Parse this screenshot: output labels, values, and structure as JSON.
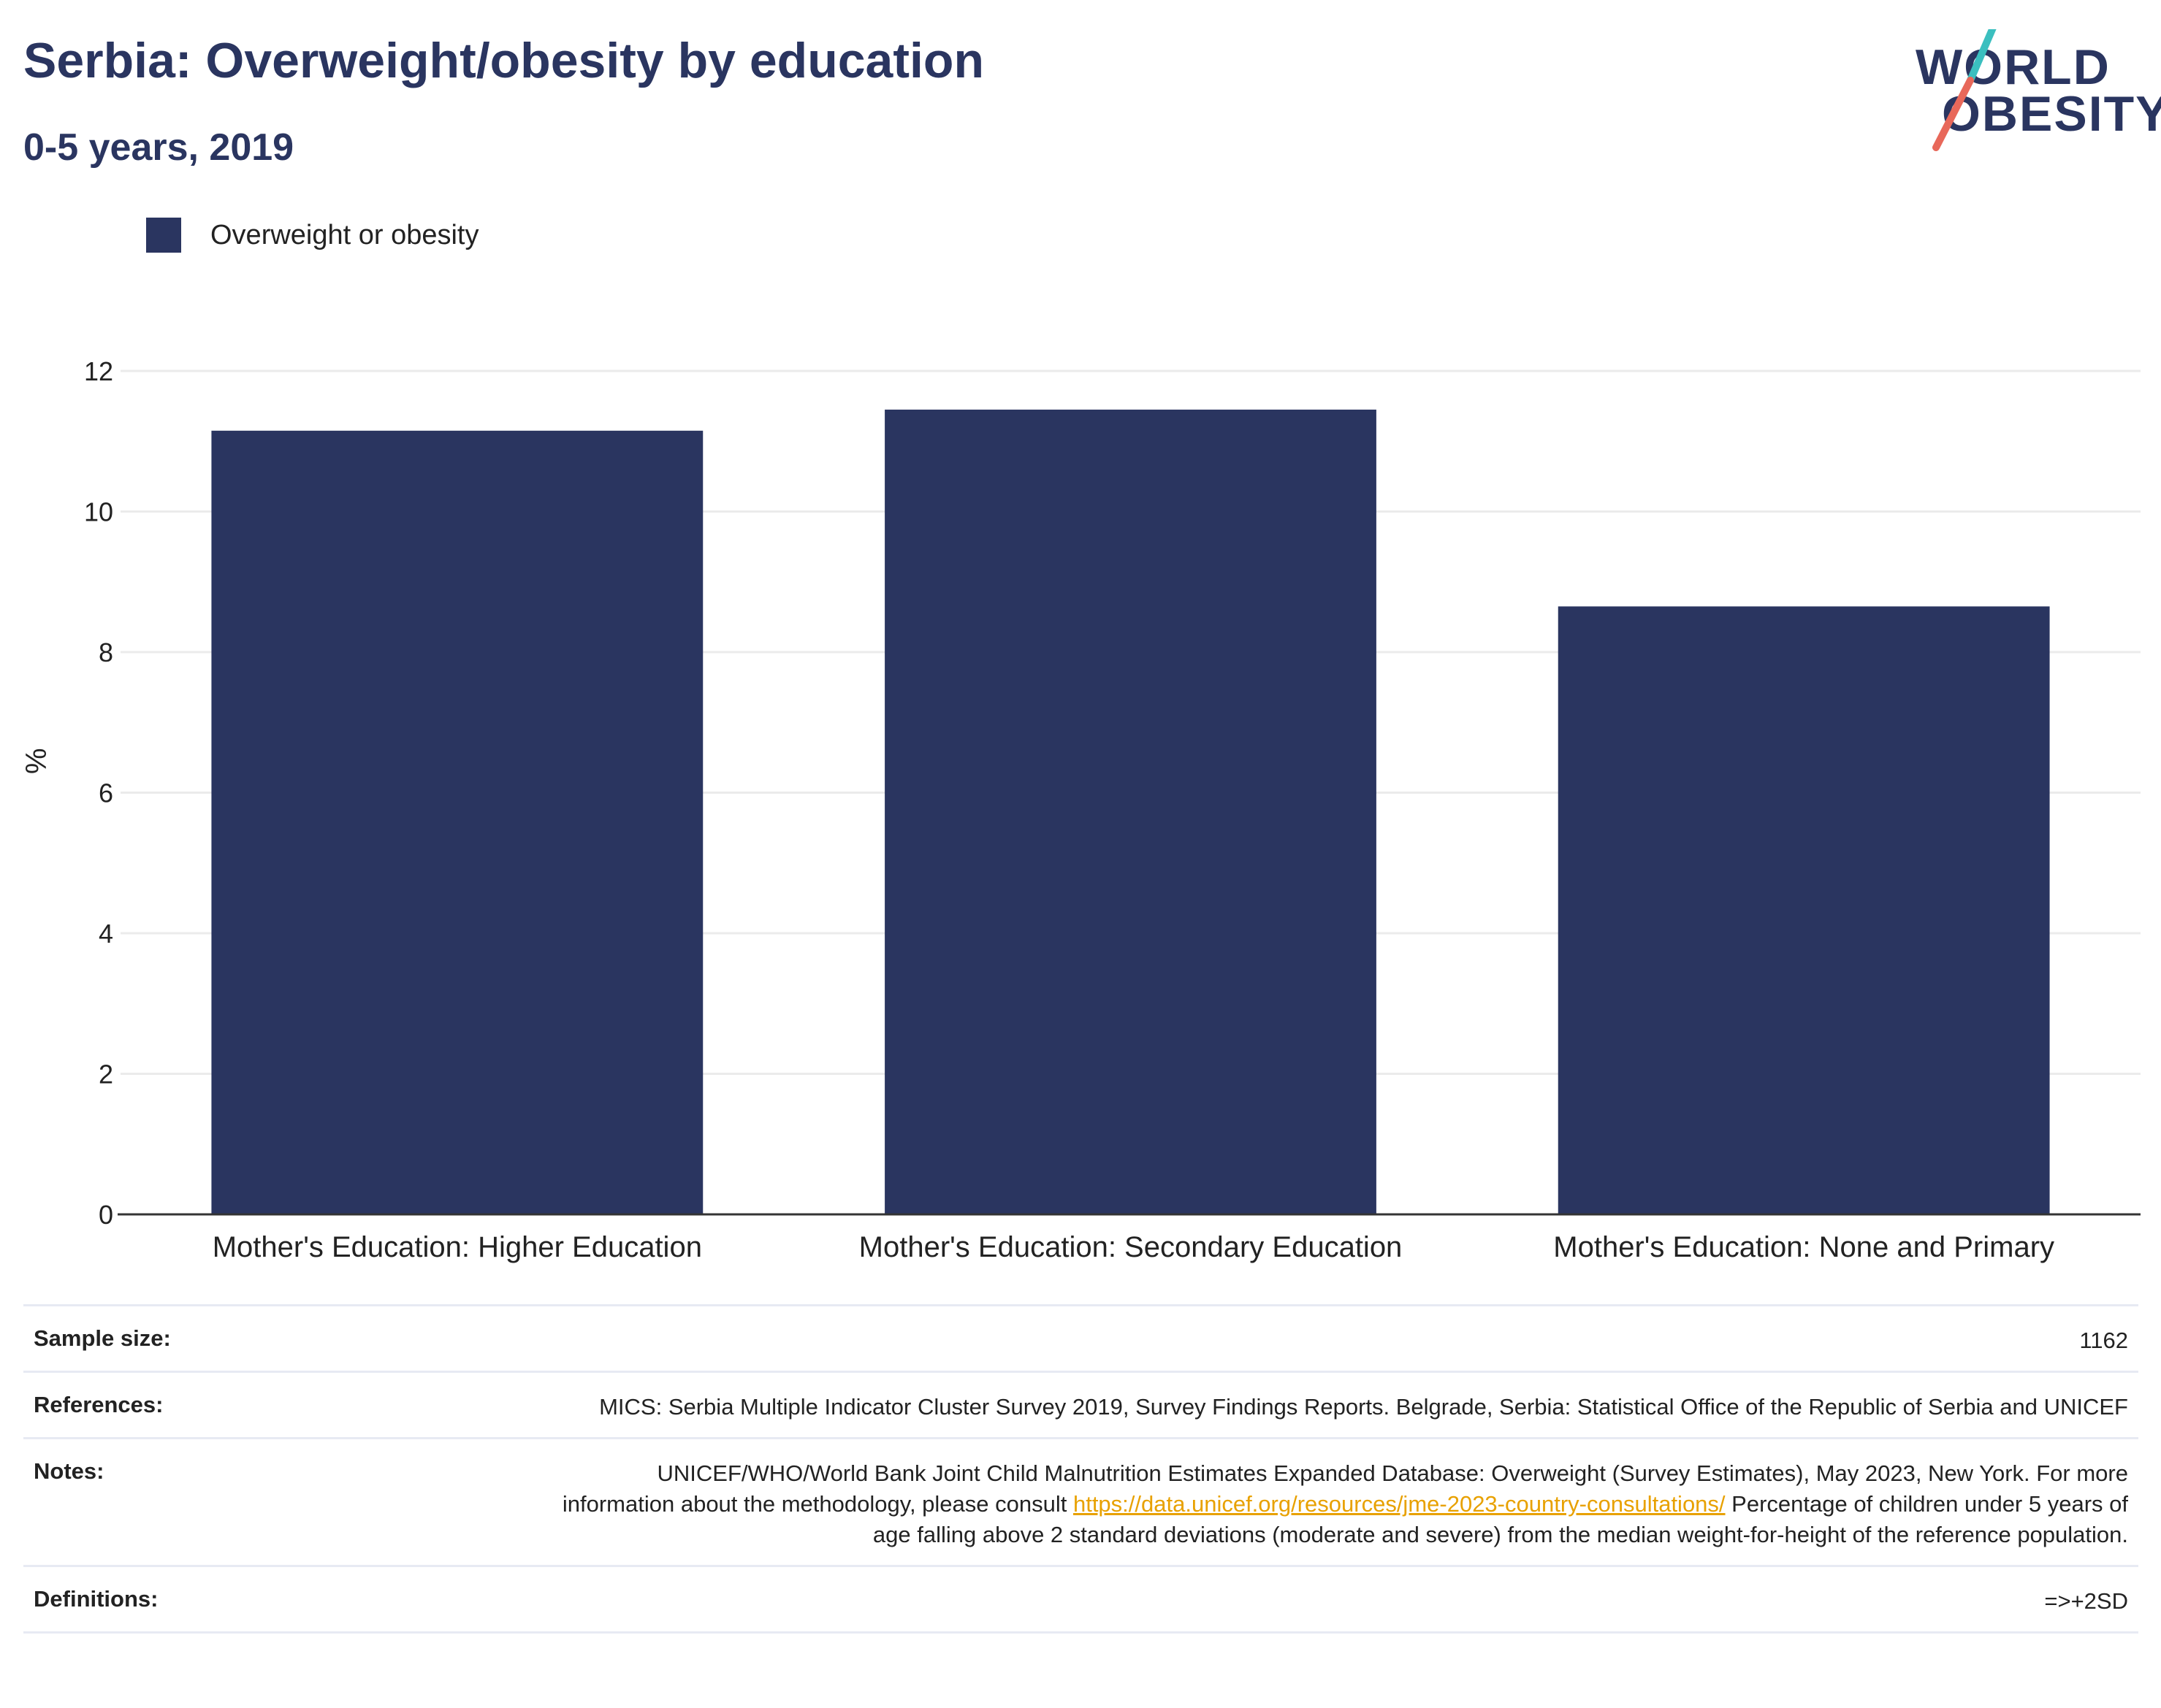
{
  "header": {
    "title": "Serbia: Overweight/obesity by education",
    "subtitle": "0-5 years, 2019"
  },
  "logo": {
    "line1": "WORLD",
    "line2": "OBESITY",
    "colors": {
      "text": "#2a3560",
      "slash_top": "#3bbfbf",
      "slash_bottom": "#e8685a"
    }
  },
  "legend": {
    "label": "Overweight or obesity",
    "color": "#2a3560"
  },
  "chart_data": {
    "type": "bar",
    "categories": [
      "Mother's Education: Higher Education",
      "Mother's Education: Secondary Education",
      "Mother's Education: None and Primary"
    ],
    "series": [
      {
        "name": "Overweight or obesity",
        "values": [
          11.15,
          11.45,
          8.65
        ]
      }
    ],
    "xlabel": "",
    "ylabel": "%",
    "ylim": [
      0,
      12
    ],
    "yticks": [
      0,
      2,
      4,
      6,
      8,
      10,
      12
    ],
    "grid": true,
    "legend_position": "top-left",
    "bar_color": "#2a3560"
  },
  "info": {
    "sample_size_label": "Sample size:",
    "sample_size_value": "1162",
    "references_label": "References:",
    "references_value": "MICS: Serbia Multiple Indicator Cluster Survey 2019, Survey Findings Reports. Belgrade, Serbia: Statistical Office of the Republic of Serbia and UNICEF",
    "notes_label": "Notes:",
    "notes_value_pre": "UNICEF/WHO/World Bank Joint Child Malnutrition Estimates Expanded Database: Overweight (Survey Estimates), May 2023, New York. For more information about the methodology, please consult ",
    "notes_link": "https://data.unicef.org/resources/jme-2023-country-consultations/",
    "notes_value_post": " Percentage of children under 5 years of age falling above 2 standard deviations (moderate and severe) from the median weight-for-height of the reference population.",
    "definitions_label": "Definitions:",
    "definitions_value": "=>+2SD"
  }
}
